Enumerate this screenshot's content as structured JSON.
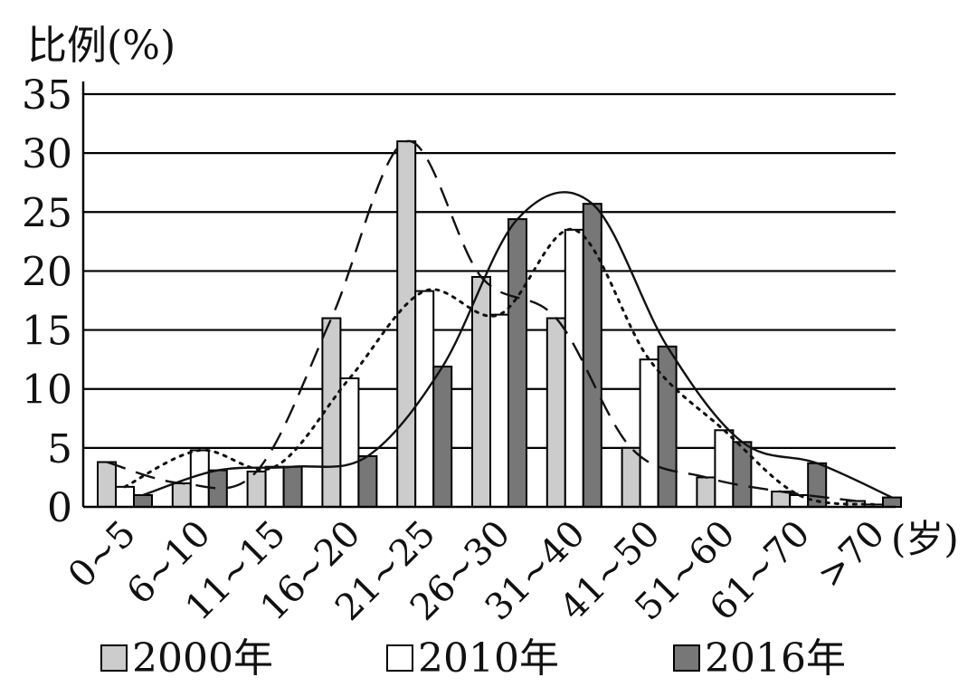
{
  "chart_data": {
    "type": "bar",
    "ylabel": "比例(%)",
    "xunit": "(岁)",
    "yticks": [
      0,
      5,
      10,
      15,
      20,
      25,
      30,
      35
    ],
    "ylim": [
      0,
      35
    ],
    "grid": true,
    "categories": [
      "0~5",
      "6~10",
      "11~15",
      "16~20",
      "21~25",
      "26~30",
      "31~40",
      "41~50",
      "51~60",
      "61~70",
      ">70"
    ],
    "series": [
      {
        "name": "2000年",
        "values": [
          3.8,
          2.0,
          3.0,
          16.0,
          31.0,
          19.5,
          16.0,
          5.0,
          2.5,
          1.3,
          0.5
        ],
        "color": "#cccccc",
        "curve": "dashed"
      },
      {
        "name": "2010年",
        "values": [
          1.7,
          4.8,
          3.4,
          10.9,
          18.3,
          16.3,
          23.5,
          12.5,
          6.5,
          1.0,
          0.2
        ],
        "color": "#ffffff",
        "curve": "dotted"
      },
      {
        "name": "2016年",
        "values": [
          1.0,
          3.1,
          3.4,
          4.3,
          11.9,
          24.4,
          25.7,
          13.6,
          5.5,
          3.7,
          0.8
        ],
        "color": "#777777",
        "curve": "solid"
      }
    ],
    "legend_position": "bottom"
  }
}
